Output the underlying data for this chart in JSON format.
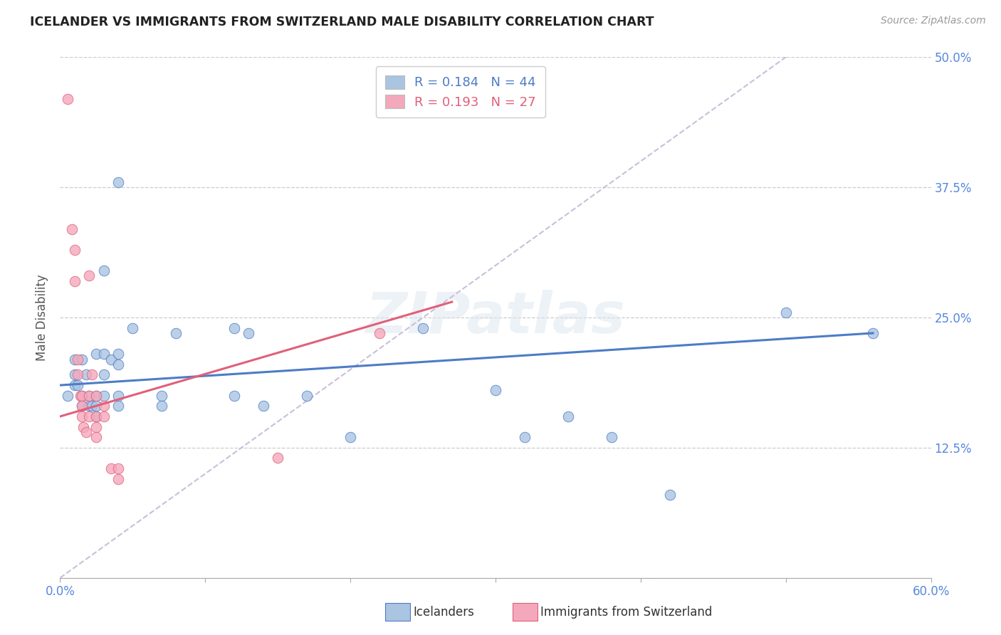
{
  "title": "ICELANDER VS IMMIGRANTS FROM SWITZERLAND MALE DISABILITY CORRELATION CHART",
  "source": "Source: ZipAtlas.com",
  "ylabel": "Male Disability",
  "xlim": [
    0.0,
    0.6
  ],
  "ylim": [
    0.0,
    0.5
  ],
  "yticks": [
    0.0,
    0.125,
    0.25,
    0.375,
    0.5
  ],
  "ytick_labels": [
    "",
    "12.5%",
    "25.0%",
    "37.5%",
    "50.0%"
  ],
  "xtick_positions": [
    0.0,
    0.1,
    0.2,
    0.3,
    0.4,
    0.5,
    0.6
  ],
  "xtick_labels": [
    "0.0%",
    "",
    "",
    "",
    "",
    "",
    "60.0%"
  ],
  "legend_r1": "R = 0.184",
  "legend_n1": "N = 44",
  "legend_r2": "R = 0.193",
  "legend_n2": "N = 27",
  "color_blue": "#aac5e2",
  "color_pink": "#f4a8bc",
  "line_color_blue": "#4d7cc7",
  "line_color_pink": "#e0607a",
  "line_color_diag": "#c8c0d8",
  "tick_color": "#5588dd",
  "watermark": "ZIPatlas",
  "blue_points": [
    [
      0.005,
      0.175
    ],
    [
      0.01,
      0.21
    ],
    [
      0.01,
      0.195
    ],
    [
      0.01,
      0.185
    ],
    [
      0.012,
      0.185
    ],
    [
      0.015,
      0.21
    ],
    [
      0.015,
      0.175
    ],
    [
      0.015,
      0.165
    ],
    [
      0.018,
      0.195
    ],
    [
      0.02,
      0.175
    ],
    [
      0.02,
      0.165
    ],
    [
      0.022,
      0.165
    ],
    [
      0.025,
      0.215
    ],
    [
      0.025,
      0.175
    ],
    [
      0.025,
      0.165
    ],
    [
      0.025,
      0.155
    ],
    [
      0.03,
      0.295
    ],
    [
      0.03,
      0.215
    ],
    [
      0.03,
      0.195
    ],
    [
      0.03,
      0.175
    ],
    [
      0.035,
      0.21
    ],
    [
      0.04,
      0.38
    ],
    [
      0.04,
      0.215
    ],
    [
      0.04,
      0.205
    ],
    [
      0.04,
      0.175
    ],
    [
      0.04,
      0.165
    ],
    [
      0.05,
      0.24
    ],
    [
      0.07,
      0.175
    ],
    [
      0.07,
      0.165
    ],
    [
      0.08,
      0.235
    ],
    [
      0.12,
      0.24
    ],
    [
      0.12,
      0.175
    ],
    [
      0.13,
      0.235
    ],
    [
      0.14,
      0.165
    ],
    [
      0.17,
      0.175
    ],
    [
      0.2,
      0.135
    ],
    [
      0.25,
      0.24
    ],
    [
      0.3,
      0.18
    ],
    [
      0.32,
      0.135
    ],
    [
      0.35,
      0.155
    ],
    [
      0.38,
      0.135
    ],
    [
      0.42,
      0.08
    ],
    [
      0.5,
      0.255
    ],
    [
      0.56,
      0.235
    ]
  ],
  "pink_points": [
    [
      0.005,
      0.46
    ],
    [
      0.008,
      0.335
    ],
    [
      0.01,
      0.315
    ],
    [
      0.01,
      0.285
    ],
    [
      0.012,
      0.21
    ],
    [
      0.012,
      0.195
    ],
    [
      0.014,
      0.175
    ],
    [
      0.015,
      0.175
    ],
    [
      0.015,
      0.165
    ],
    [
      0.015,
      0.155
    ],
    [
      0.016,
      0.145
    ],
    [
      0.018,
      0.14
    ],
    [
      0.02,
      0.29
    ],
    [
      0.02,
      0.175
    ],
    [
      0.02,
      0.155
    ],
    [
      0.022,
      0.195
    ],
    [
      0.025,
      0.175
    ],
    [
      0.025,
      0.155
    ],
    [
      0.025,
      0.145
    ],
    [
      0.025,
      0.135
    ],
    [
      0.03,
      0.165
    ],
    [
      0.03,
      0.155
    ],
    [
      0.035,
      0.105
    ],
    [
      0.04,
      0.105
    ],
    [
      0.04,
      0.095
    ],
    [
      0.15,
      0.115
    ],
    [
      0.22,
      0.235
    ]
  ],
  "blue_trendline": [
    [
      0.0,
      0.185
    ],
    [
      0.56,
      0.235
    ]
  ],
  "pink_trendline": [
    [
      0.0,
      0.155
    ],
    [
      0.27,
      0.265
    ]
  ],
  "diag_line": [
    [
      0.0,
      0.0
    ],
    [
      0.6,
      0.6
    ]
  ]
}
